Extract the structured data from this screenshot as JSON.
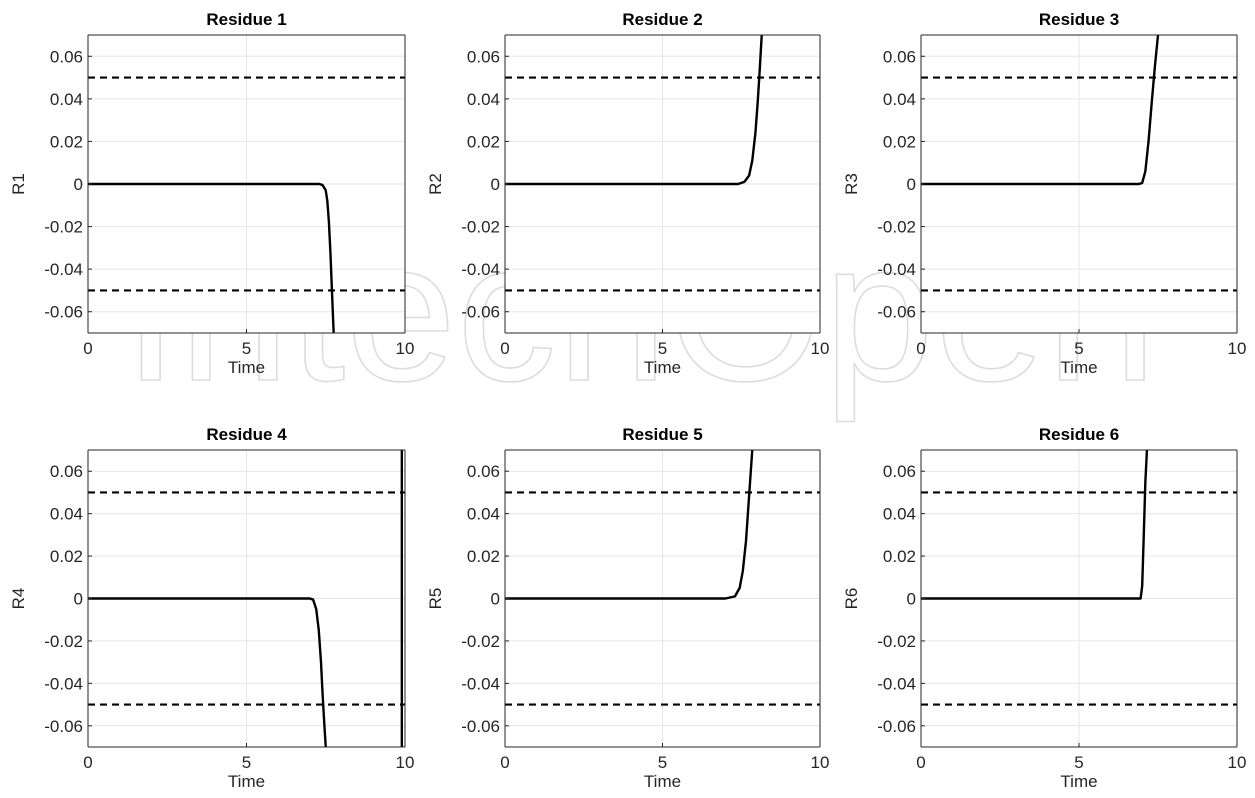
{
  "watermark": "IntechOpen",
  "chart_data": [
    {
      "type": "line",
      "title": "Residue 1",
      "xlabel": "Time",
      "ylabel": "R1",
      "xlim": [
        0,
        10
      ],
      "ylim": [
        -0.07,
        0.07
      ],
      "xticks": [
        0,
        5,
        10
      ],
      "yticks": [
        -0.06,
        -0.04,
        -0.02,
        0,
        0.02,
        0.04,
        0.06
      ],
      "xtick_labels": [
        "0",
        "5",
        "10"
      ],
      "ytick_labels": [
        "-0.06",
        "-0.04",
        "-0.02",
        "0",
        "0.02",
        "0.04",
        "0.06"
      ],
      "grid": true,
      "thresholds": [
        0.05,
        -0.05
      ],
      "series": [
        {
          "x": [
            0,
            7.0,
            7.3,
            7.4,
            7.5,
            7.55,
            7.6,
            7.65,
            7.7,
            7.75
          ],
          "y": [
            0,
            0,
            0,
            -0.0005,
            -0.003,
            -0.008,
            -0.018,
            -0.033,
            -0.052,
            -0.07
          ]
        }
      ]
    },
    {
      "type": "line",
      "title": "Residue 2",
      "xlabel": "Time",
      "ylabel": "R2",
      "xlim": [
        0,
        10
      ],
      "ylim": [
        -0.07,
        0.07
      ],
      "xticks": [
        0,
        5,
        10
      ],
      "yticks": [
        -0.06,
        -0.04,
        -0.02,
        0,
        0.02,
        0.04,
        0.06
      ],
      "xtick_labels": [
        "0",
        "5",
        "10"
      ],
      "ytick_labels": [
        "-0.06",
        "-0.04",
        "-0.02",
        "0",
        "0.02",
        "0.04",
        "0.06"
      ],
      "grid": true,
      "thresholds": [
        0.05,
        -0.05
      ],
      "series": [
        {
          "x": [
            0,
            7.0,
            7.4,
            7.6,
            7.75,
            7.85,
            7.95,
            8.02,
            8.08,
            8.15
          ],
          "y": [
            0,
            0,
            0,
            0.001,
            0.004,
            0.011,
            0.024,
            0.038,
            0.052,
            0.07
          ]
        }
      ]
    },
    {
      "type": "line",
      "title": "Residue 3",
      "xlabel": "Time",
      "ylabel": "R3",
      "xlim": [
        0,
        10
      ],
      "ylim": [
        -0.07,
        0.07
      ],
      "xticks": [
        0,
        5,
        10
      ],
      "yticks": [
        -0.06,
        -0.04,
        -0.02,
        0,
        0.02,
        0.04,
        0.06
      ],
      "xtick_labels": [
        "0",
        "5",
        "10"
      ],
      "ytick_labels": [
        "-0.06",
        "-0.04",
        "-0.02",
        "0",
        "0.02",
        "0.04",
        "0.06"
      ],
      "grid": true,
      "thresholds": [
        0.05,
        -0.05
      ],
      "series": [
        {
          "x": [
            0,
            6.9,
            7.0,
            7.1,
            7.2,
            7.3,
            7.4,
            7.5
          ],
          "y": [
            0,
            0,
            0.0005,
            0.006,
            0.02,
            0.038,
            0.055,
            0.07
          ]
        }
      ]
    },
    {
      "type": "line",
      "title": "Residue 4",
      "xlabel": "Time",
      "ylabel": "R4",
      "xlim": [
        0,
        10
      ],
      "ylim": [
        -0.07,
        0.07
      ],
      "xticks": [
        0,
        5,
        10
      ],
      "yticks": [
        -0.06,
        -0.04,
        -0.02,
        0,
        0.02,
        0.04,
        0.06
      ],
      "xtick_labels": [
        "0",
        "5",
        "10"
      ],
      "ytick_labels": [
        "-0.06",
        "-0.04",
        "-0.02",
        "0",
        "0.02",
        "0.04",
        "0.06"
      ],
      "grid": true,
      "thresholds": [
        0.05,
        -0.05
      ],
      "series": [
        {
          "x": [
            0,
            7.0,
            7.1,
            7.2,
            7.28,
            7.35,
            7.4,
            7.45,
            7.5
          ],
          "y": [
            0,
            0,
            -0.0005,
            -0.005,
            -0.015,
            -0.03,
            -0.045,
            -0.058,
            -0.07
          ]
        },
        {
          "x": [
            9.9,
            9.9
          ],
          "y": [
            -0.07,
            0.07
          ]
        }
      ]
    },
    {
      "type": "line",
      "title": "Residue 5",
      "xlabel": "Time",
      "ylabel": "R5",
      "xlim": [
        0,
        10
      ],
      "ylim": [
        -0.07,
        0.07
      ],
      "xticks": [
        0,
        5,
        10
      ],
      "yticks": [
        -0.06,
        -0.04,
        -0.02,
        0,
        0.02,
        0.04,
        0.06
      ],
      "xtick_labels": [
        "0",
        "5",
        "10"
      ],
      "ytick_labels": [
        "-0.06",
        "-0.04",
        "-0.02",
        "0",
        "0.02",
        "0.04",
        "0.06"
      ],
      "grid": true,
      "thresholds": [
        0.05,
        -0.05
      ],
      "series": [
        {
          "x": [
            0,
            7.0,
            7.3,
            7.45,
            7.55,
            7.65,
            7.72,
            7.78,
            7.85
          ],
          "y": [
            0,
            0,
            0.001,
            0.005,
            0.013,
            0.027,
            0.042,
            0.055,
            0.07
          ]
        }
      ]
    },
    {
      "type": "line",
      "title": "Residue 6",
      "xlabel": "Time",
      "ylabel": "R6",
      "xlim": [
        0,
        10
      ],
      "ylim": [
        -0.07,
        0.07
      ],
      "xticks": [
        0,
        5,
        10
      ],
      "yticks": [
        -0.06,
        -0.04,
        -0.02,
        0,
        0.02,
        0.04,
        0.06
      ],
      "xtick_labels": [
        "0",
        "5",
        "10"
      ],
      "ytick_labels": [
        "-0.06",
        "-0.04",
        "-0.02",
        "0",
        "0.02",
        "0.04",
        "0.06"
      ],
      "grid": true,
      "thresholds": [
        0.05,
        -0.05
      ],
      "series": [
        {
          "x": [
            0,
            6.95,
            7.0,
            7.05,
            7.1,
            7.15
          ],
          "y": [
            0,
            0,
            0.006,
            0.03,
            0.055,
            0.07
          ]
        }
      ]
    }
  ]
}
